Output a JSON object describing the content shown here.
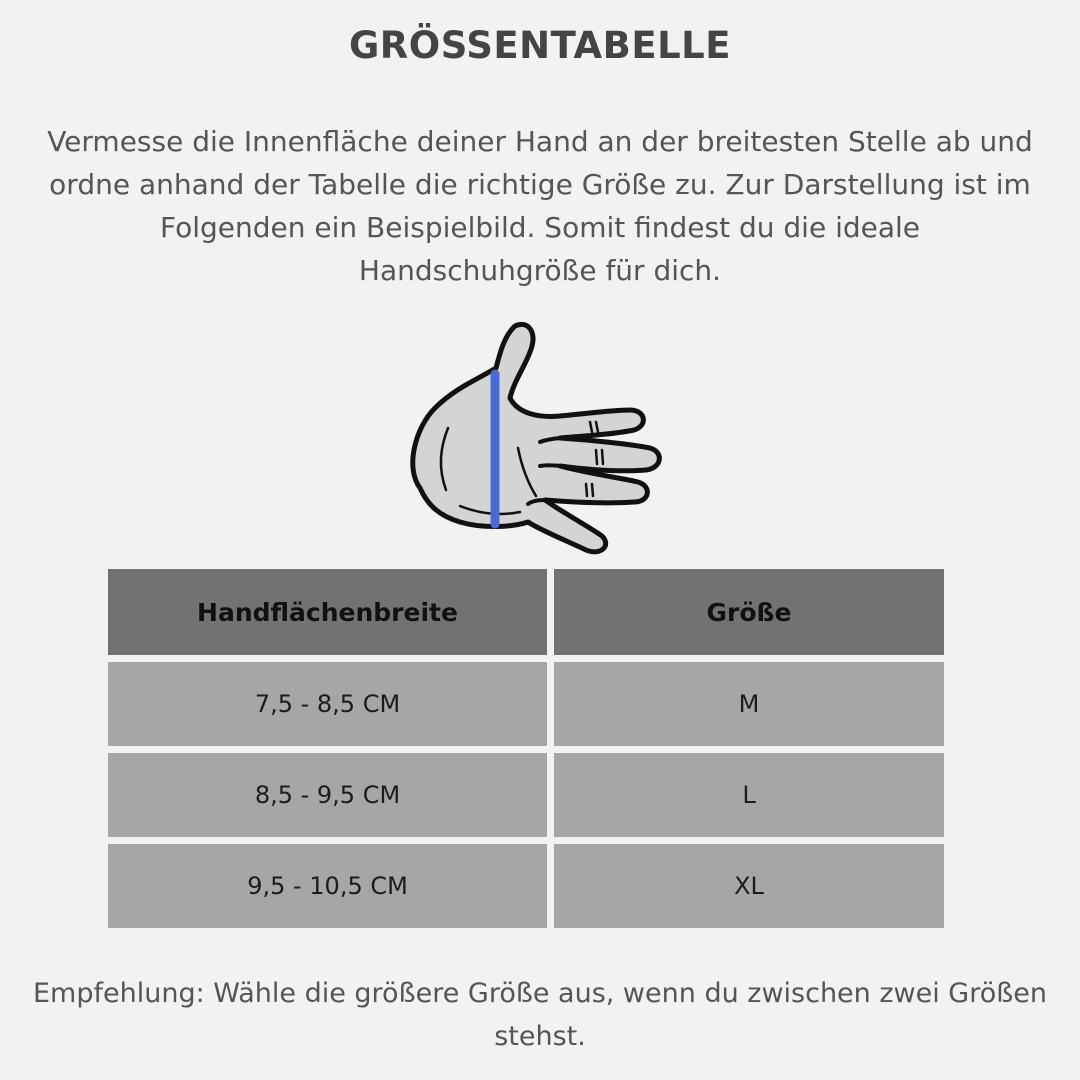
{
  "title": "GRÖSSENTABELLE",
  "intro": "Vermesse die Innenfläche deiner Hand an der breitesten Stelle ab und ordne anhand der Tabelle die richtige Größe zu. Zur Darstellung ist im Folgenden ein Beispielbild. Somit findest du die ideale Handschuhgröße für dich.",
  "illustration": {
    "icon": "hand-palm-icon",
    "measure_color": "#4a6bd6",
    "fill_color": "#d4d4d4"
  },
  "table": {
    "headers": [
      "Handflächenbreite",
      "Größe"
    ],
    "rows": [
      [
        "7,5 - 8,5 CM",
        "M"
      ],
      [
        "8,5 - 9,5 CM",
        "L"
      ],
      [
        "9,5 - 10,5 CM",
        "XL"
      ]
    ]
  },
  "note": "Empfehlung: Wähle die größere Größe aus, wenn du zwischen zwei Größen stehst."
}
